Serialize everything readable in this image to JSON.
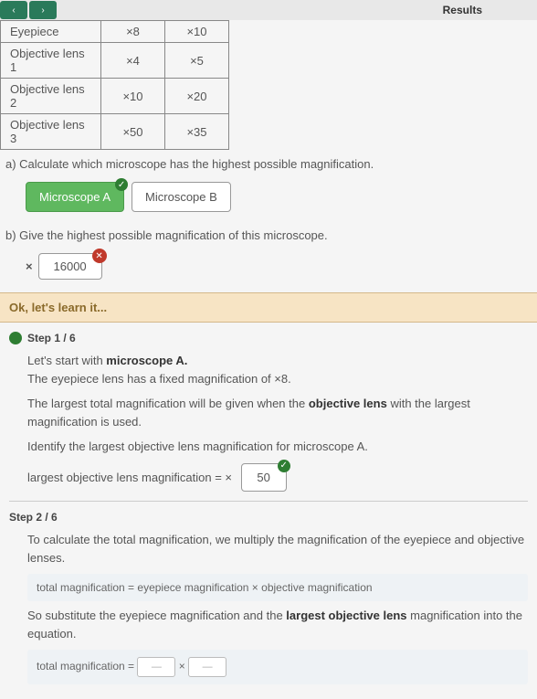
{
  "topbar": {
    "results_label": "Results"
  },
  "table": {
    "rows": [
      {
        "label": "Eyepiece",
        "colA": "×8",
        "colB": "×10"
      },
      {
        "label": "Objective lens 1",
        "colA": "×4",
        "colB": "×5"
      },
      {
        "label": "Objective lens 2",
        "colA": "×10",
        "colB": "×20"
      },
      {
        "label": "Objective lens 3",
        "colA": "×50",
        "colB": "×35"
      }
    ]
  },
  "qa": {
    "text": "a) Calculate which microscope has the highest possible magnification.",
    "choiceA": "Microscope A",
    "choiceB": "Microscope B"
  },
  "qb": {
    "text": "b) Give the highest possible magnification of this microscope.",
    "prefix": "×",
    "value": "16000"
  },
  "learn": {
    "title": "Ok, let's learn it..."
  },
  "step1": {
    "label": "Step 1 / 6",
    "line1a": "Let's start with ",
    "line1b": "microscope A.",
    "line2": "The eyepiece lens has a fixed magnification of ×8.",
    "line3a": "The largest total magnification will be given when the ",
    "line3b": "objective lens",
    "line3c": " with the largest magnification is used.",
    "line4": "Identify the largest objective lens magnification for microscope A.",
    "line5": "largest objective lens magnification = ×",
    "answer": "50"
  },
  "step2": {
    "label": "Step 2 / 6",
    "line1": "To calculate the total magnification, we multiply the magnification of the eyepiece and objective lenses.",
    "formula": "total magnification = eyepiece magnification × objective magnification",
    "line2a": "So substitute the eyepiece magnification and the ",
    "line2b": "largest objective lens",
    "line2c": " magnification into the equation.",
    "final_label": "total magnification =",
    "times": "×"
  },
  "colors": {
    "selected_bg": "#5fb85f",
    "tick_bg": "#2e7d32",
    "cross_bg": "#c0392b",
    "learn_bg": "#f7e4c4"
  }
}
